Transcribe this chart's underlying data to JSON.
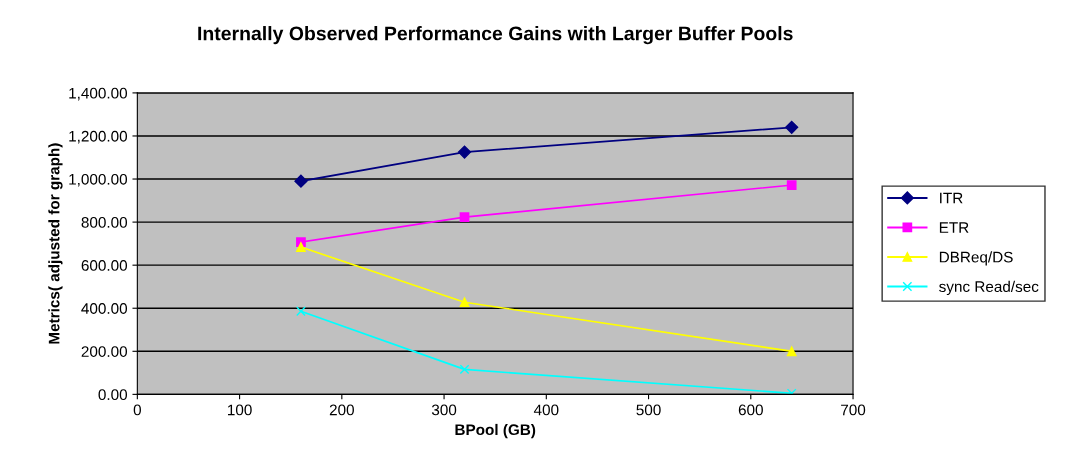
{
  "chart_data": {
    "type": "line",
    "title": "Internally Observed Performance Gains with Larger Buffer Pools",
    "xlabel": "BPool (GB)",
    "ylabel": "Metrics( adjusted for graph)",
    "x": [
      160,
      320,
      640
    ],
    "series": [
      {
        "name": "ITR",
        "color": "#000080",
        "marker": "diamond",
        "values": [
          990,
          1125,
          1240
        ]
      },
      {
        "name": "ETR",
        "color": "#ff00ff",
        "marker": "square",
        "values": [
          707,
          823,
          972
        ]
      },
      {
        "name": "DBReq/DS",
        "color": "#ffff00",
        "marker": "triangle",
        "values": [
          684,
          428,
          200
        ]
      },
      {
        "name": "sync Read/sec",
        "color": "#00ffff",
        "marker": "cross",
        "values": [
          386,
          116,
          5
        ]
      }
    ],
    "xlim": [
      0,
      700
    ],
    "xticks": [
      0,
      100,
      200,
      300,
      400,
      500,
      600,
      700
    ],
    "ylim": [
      0,
      1400
    ],
    "yticks": [
      {
        "value": 0,
        "label": "0.00"
      },
      {
        "value": 200,
        "label": "200.00"
      },
      {
        "value": 400,
        "label": "400.00"
      },
      {
        "value": 600,
        "label": "600.00"
      },
      {
        "value": 800,
        "label": "800.00"
      },
      {
        "value": 1000,
        "label": "1,000.00"
      },
      {
        "value": 1200,
        "label": "1,200.00"
      },
      {
        "value": 1400,
        "label": "1,400.00"
      }
    ],
    "grid": "y",
    "legend": "right",
    "line_style": "solid"
  }
}
